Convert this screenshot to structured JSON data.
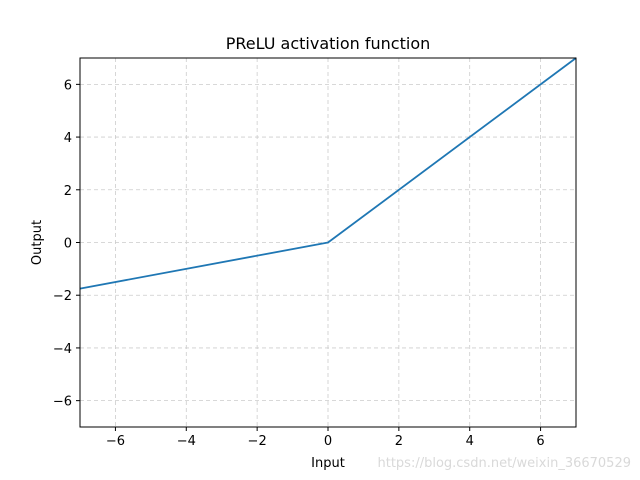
{
  "chart_data": {
    "type": "line",
    "title": "PReLU activation function",
    "xlabel": "Input",
    "ylabel": "Output",
    "xlim": [
      -7,
      7
    ],
    "ylim": [
      -7,
      7
    ],
    "xticks": [
      -6,
      -4,
      -2,
      0,
      2,
      4,
      6
    ],
    "yticks": [
      -6,
      -4,
      -2,
      0,
      2,
      4,
      6
    ],
    "xtick_labels": [
      "−6",
      "−4",
      "−2",
      "0",
      "2",
      "4",
      "6"
    ],
    "ytick_labels": [
      "−6",
      "−4",
      "−2",
      "0",
      "2",
      "4",
      "6"
    ],
    "grid": true,
    "series": [
      {
        "x": [
          -7,
          0,
          7
        ],
        "y": [
          -1.75,
          0,
          7
        ],
        "color": "#1f77b4"
      }
    ]
  },
  "watermark": "https://blog.csdn.net/weixin_36670529",
  "colors": {
    "line": "#1f77b4",
    "grid": "#cccccc",
    "axes": "#000000"
  }
}
